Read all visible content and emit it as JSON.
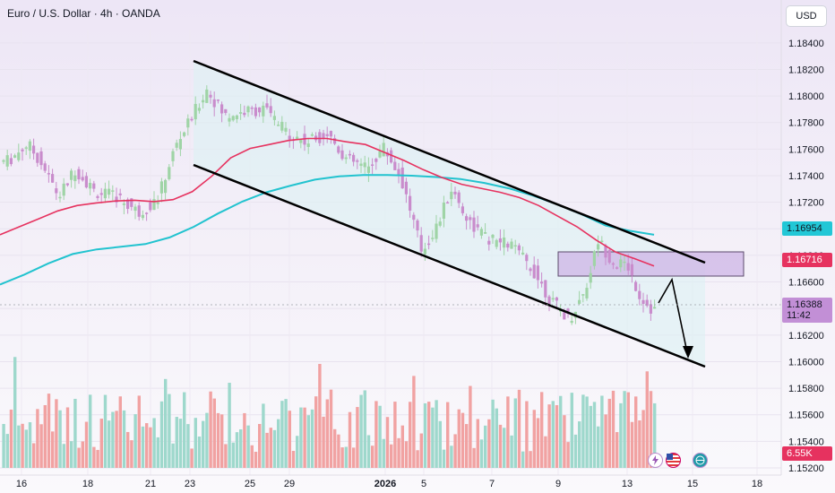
{
  "header": {
    "title": "Euro / U.S. Dollar · 4h · OANDA",
    "currency_button": "USD"
  },
  "price_tags": {
    "ma_slow": "1.16954",
    "ma_fast": "1.16716",
    "current_price": "1.16388",
    "countdown": "11:42",
    "volume": "6.55K"
  },
  "colors": {
    "bull": "#9fd4a6",
    "bear": "#c98ccc",
    "ma_fast": "#e6325f",
    "ma_slow": "#22c3cf",
    "vol_bull": "#9ed8cc",
    "vol_bear": "#f1a2a2",
    "zone": "#cdb4e6"
  },
  "chart_data": {
    "type": "candlestick",
    "symbol": "EURUSD",
    "timeframe": "4h",
    "ylim": [
      1.152,
      1.185
    ],
    "y_ticks": [
      "1.18400",
      "1.18200",
      "1.18000",
      "1.17800",
      "1.17600",
      "1.17400",
      "1.17200",
      "1.17000",
      "1.16800",
      "1.16600",
      "1.16400",
      "1.16200",
      "1.16000",
      "1.15800",
      "1.15600",
      "1.15400",
      "1.15200"
    ],
    "x_ticks": [
      "16",
      "18",
      "21",
      "23",
      "25",
      "29",
      "2026",
      "5",
      "7",
      "9",
      "13",
      "15",
      "18"
    ],
    "series": [
      {
        "name": "ma_fast",
        "values": [
          1.16955,
          1.17015,
          1.17075,
          1.17135,
          1.17175,
          1.17195,
          1.1721,
          1.17215,
          1.17205,
          1.1722,
          1.1728,
          1.17395,
          1.17535,
          1.17605,
          1.17635,
          1.17665,
          1.1768,
          1.1768,
          1.17655,
          1.17635,
          1.17575,
          1.17515,
          1.17445,
          1.17385,
          1.17335,
          1.17305,
          1.17275,
          1.17235,
          1.17175,
          1.17095,
          1.17015,
          1.16915,
          1.16825,
          1.16775,
          1.1672
        ]
      },
      {
        "name": "ma_slow",
        "values": [
          1.1658,
          1.16655,
          1.1674,
          1.1681,
          1.16845,
          1.16865,
          1.16885,
          1.16935,
          1.17015,
          1.17115,
          1.17205,
          1.17275,
          1.17325,
          1.1737,
          1.17395,
          1.17405,
          1.17405,
          1.174,
          1.1739,
          1.17375,
          1.17345,
          1.17305,
          1.1725,
          1.17185,
          1.1711,
          1.17025,
          1.16985,
          1.16955
        ]
      }
    ]
  }
}
